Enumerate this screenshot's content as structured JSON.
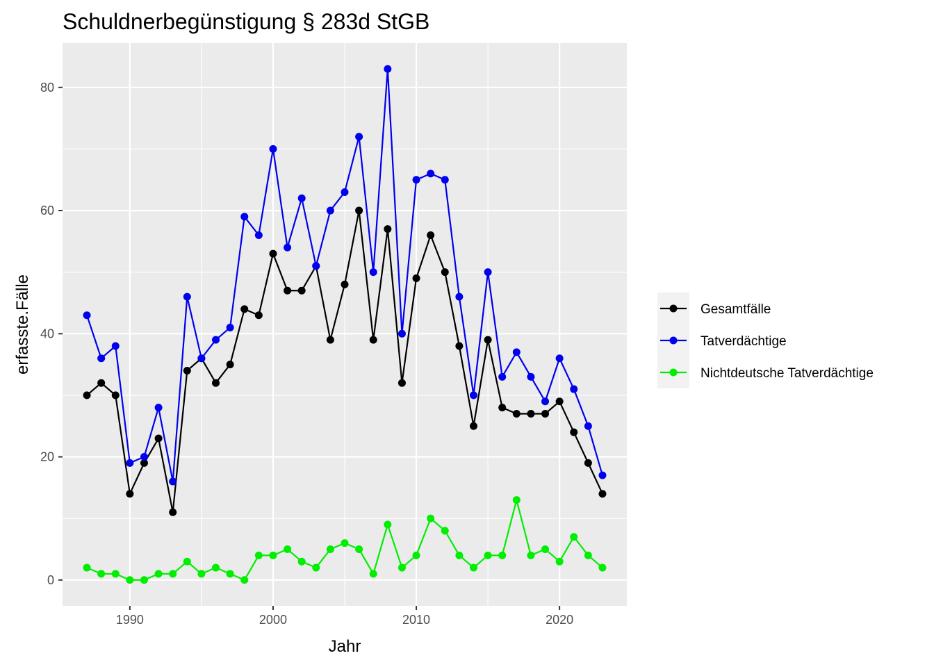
{
  "chart_data": {
    "type": "line",
    "title": "Schuldnerbegünstigung § 283d StGB",
    "xlabel": "Jahr",
    "ylabel": "erfasste.Fälle",
    "xlim": [
      1985.3,
      2024.7
    ],
    "ylim": [
      -4.2,
      87.2
    ],
    "x_ticks": [
      1990,
      2000,
      2010,
      2020
    ],
    "y_ticks": [
      0,
      20,
      40,
      60,
      80
    ],
    "x_tick_labels": [
      "1990",
      "2000",
      "2010",
      "2020"
    ],
    "y_tick_labels": [
      "0",
      "20",
      "40",
      "60",
      "80"
    ],
    "grid": true,
    "legend_position": "right",
    "x": [
      1987,
      1988,
      1989,
      1990,
      1991,
      1992,
      1993,
      1994,
      1995,
      1996,
      1997,
      1998,
      1999,
      2000,
      2001,
      2002,
      2003,
      2004,
      2005,
      2006,
      2007,
      2008,
      2009,
      2010,
      2011,
      2012,
      2013,
      2014,
      2015,
      2016,
      2017,
      2018,
      2019,
      2020,
      2021,
      2022,
      2023
    ],
    "series": [
      {
        "name": "Gesamtfälle",
        "color": "#000000",
        "values": [
          30,
          32,
          30,
          14,
          19,
          23,
          11,
          34,
          36,
          32,
          35,
          44,
          43,
          53,
          47,
          47,
          51,
          39,
          48,
          60,
          39,
          57,
          32,
          49,
          56,
          50,
          38,
          25,
          39,
          28,
          27,
          27,
          27,
          29,
          24,
          19,
          14
        ]
      },
      {
        "name": "Tatverdächtige",
        "color": "#0000ee",
        "values": [
          43,
          36,
          38,
          19,
          20,
          28,
          16,
          46,
          36,
          39,
          41,
          59,
          56,
          70,
          54,
          62,
          51,
          60,
          63,
          72,
          50,
          83,
          40,
          65,
          66,
          65,
          46,
          30,
          50,
          33,
          37,
          33,
          29,
          36,
          31,
          25,
          17
        ]
      },
      {
        "name": "Nichtdeutsche Tatverdächtige",
        "color": "#00ee00",
        "values": [
          2,
          1,
          1,
          0,
          0,
          1,
          1,
          3,
          1,
          2,
          1,
          0,
          4,
          4,
          5,
          3,
          2,
          5,
          6,
          5,
          1,
          9,
          2,
          4,
          10,
          8,
          4,
          2,
          4,
          4,
          13,
          4,
          5,
          3,
          7,
          4,
          2
        ]
      }
    ],
    "panel_color": "#ebebeb",
    "grid_color": "#ffffff"
  }
}
